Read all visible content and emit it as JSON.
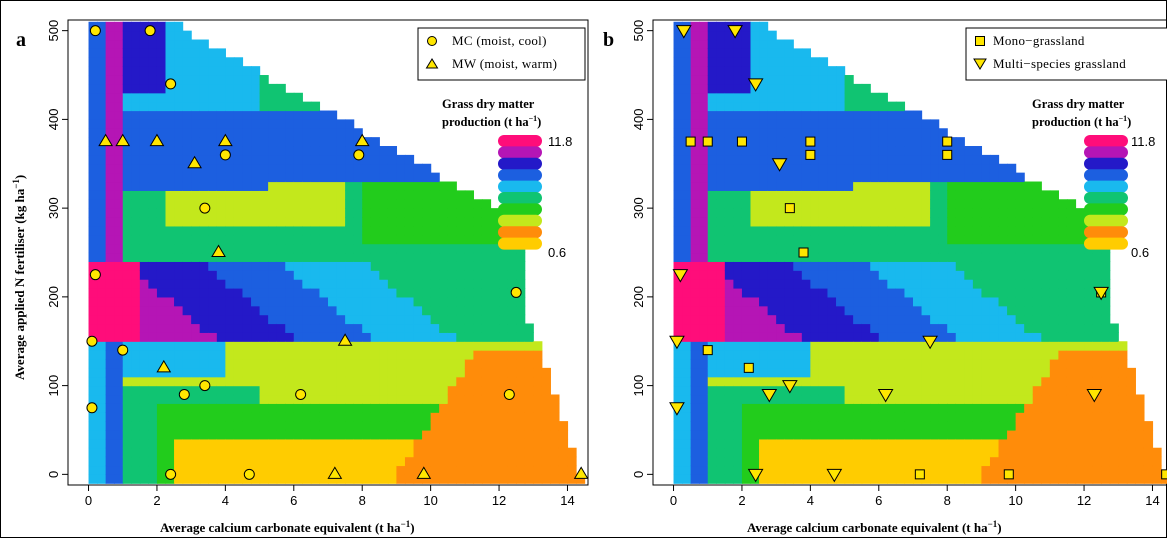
{
  "chart_data": [
    {
      "panel_label": "a",
      "type": "heatmap",
      "xlabel": "Average calcium carbonate equivalent (t ha",
      "xlabel_sup": "−1",
      "xlabel_end": ")",
      "ylabel": "Average applied N fertiliser (kg ha",
      "ylabel_sup": "−1",
      "ylabel_end": ")",
      "xlim": [
        -0.6,
        14.6
      ],
      "ylim": [
        -12,
        512
      ],
      "xticks": [
        0,
        2,
        4,
        6,
        8,
        10,
        12,
        14
      ],
      "yticks": [
        0,
        100,
        200,
        300,
        400,
        500
      ],
      "colorbar": {
        "title_line1": "Grass dry matter",
        "title_line2": "production (t ha",
        "title_sup": "−1",
        "title_end": ")",
        "max_label": "11.8",
        "min_label": "0.6",
        "colors": [
          "#ff0d7a",
          "#b515b5",
          "#2419c8",
          "#1c5fe0",
          "#19b9ee",
          "#10c472",
          "#22cc1c",
          "#c3e81c",
          "#ff8c0a",
          "#ffcc00"
        ]
      },
      "legend": {
        "position": "top-right",
        "entries": [
          {
            "label": "MC (moist, cool)",
            "marker": "circle"
          },
          {
            "label": "MW (moist, warm)",
            "marker": "triangle-up"
          }
        ]
      },
      "series": [
        {
          "name": "MC (moist, cool)",
          "marker": "circle",
          "x": [
            0.2,
            1.8,
            2.4,
            4.0,
            7.9,
            3.4,
            0.2,
            12.5,
            0.1,
            1.0,
            3.4,
            2.8,
            6.2,
            0.1,
            12.3,
            2.4,
            4.7
          ],
          "y": [
            500,
            500,
            440,
            360,
            360,
            300,
            225,
            205,
            150,
            140,
            100,
            90,
            90,
            75,
            90,
            0,
            0
          ]
        },
        {
          "name": "MW (moist, warm)",
          "marker": "triangle-up",
          "x": [
            0.5,
            1.0,
            2.0,
            4.0,
            8.0,
            3.1,
            3.8,
            7.5,
            2.2,
            7.2,
            9.8,
            14.4
          ],
          "y": [
            375,
            375,
            375,
            375,
            375,
            350,
            250,
            150,
            120,
            0,
            0,
            0
          ]
        }
      ]
    },
    {
      "panel_label": "b",
      "type": "heatmap",
      "xlabel": "Average calcium carbonate equivalent (t ha",
      "xlabel_sup": "−1",
      "xlabel_end": ")",
      "ylabel": "",
      "xlim": [
        -0.6,
        14.6
      ],
      "ylim": [
        -12,
        512
      ],
      "xticks": [
        0,
        2,
        4,
        6,
        8,
        10,
        12,
        14
      ],
      "yticks": [
        0,
        100,
        200,
        300,
        400,
        500
      ],
      "colorbar": {
        "title_line1": "Grass dry matter",
        "title_line2": "production (t ha",
        "title_sup": "−1",
        "title_end": ")",
        "max_label": "11.8",
        "min_label": "0.6",
        "colors": [
          "#ff0d7a",
          "#b515b5",
          "#2419c8",
          "#1c5fe0",
          "#19b9ee",
          "#10c472",
          "#22cc1c",
          "#c3e81c",
          "#ff8c0a",
          "#ffcc00"
        ]
      },
      "legend": {
        "position": "top-right",
        "entries": [
          {
            "label": "Mono−grassland",
            "marker": "square"
          },
          {
            "label": "Multi−species grassland",
            "marker": "triangle-down"
          }
        ]
      },
      "series": [
        {
          "name": "Mono−grassland",
          "marker": "square",
          "x": [
            0.5,
            1.0,
            2.0,
            4.0,
            4.0,
            8.0,
            8.0,
            3.4,
            3.8,
            12.5,
            1.0,
            2.2,
            7.2,
            9.8,
            14.4
          ],
          "y": [
            375,
            375,
            375,
            375,
            360,
            375,
            360,
            300,
            250,
            205,
            140,
            120,
            0,
            0,
            0
          ]
        },
        {
          "name": "Multi−species grassland",
          "marker": "triangle-down",
          "x": [
            0.3,
            1.8,
            2.4,
            3.1,
            0.2,
            12.5,
            0.1,
            7.5,
            3.4,
            2.8,
            6.2,
            12.3,
            0.1,
            2.4,
            4.7
          ],
          "y": [
            500,
            500,
            440,
            350,
            225,
            205,
            150,
            150,
            100,
            90,
            90,
            90,
            75,
            0,
            0
          ]
        }
      ]
    }
  ]
}
